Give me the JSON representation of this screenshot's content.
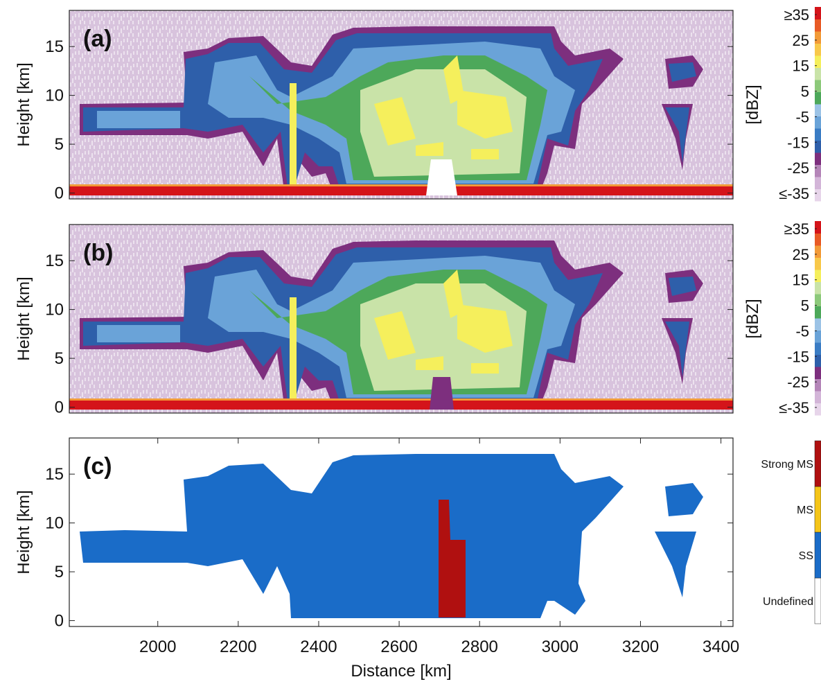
{
  "chart_data": [
    {
      "type": "heatmap",
      "panel_label": "(a)",
      "y_label": "Height [km]",
      "xlim": [
        1780,
        3430
      ],
      "ylim": [
        -0.6,
        18.7
      ],
      "yticks": [
        0,
        5,
        10,
        15
      ],
      "colorbar": {
        "label": "[dBZ]",
        "lim": [
          -38,
          38
        ],
        "ticks": [
          {
            "value": 35,
            "label": "≥35"
          },
          25,
          15,
          5,
          -5,
          -15,
          -25,
          {
            "value": -35,
            "label": "≤-35"
          }
        ],
        "colors": [
          "#e7d5ea",
          "#d3b5d8",
          "#b485b8",
          "#7d2f7e",
          "#2e5faa",
          "#3a7cc4",
          "#6aa3d8",
          "#9cc3e6",
          "#4da85a",
          "#8cc97a",
          "#c9e3a8",
          "#f5ef5c",
          "#f8c84a",
          "#f29a38",
          "#e85a25",
          "#d4141a"
        ]
      }
    },
    {
      "type": "heatmap",
      "panel_label": "(b)",
      "y_label": "Height [km]",
      "xlim": [
        1780,
        3430
      ],
      "ylim": [
        -0.6,
        18.7
      ],
      "yticks": [
        0,
        5,
        10,
        15
      ],
      "colorbar": {
        "label": "[dBZ]",
        "lim": [
          -38,
          38
        ],
        "ticks": [
          {
            "value": 35,
            "label": "≥35"
          },
          25,
          15,
          5,
          -5,
          -15,
          -25,
          {
            "value": -35,
            "label": "≤-35"
          }
        ],
        "colors": [
          "#e7d5ea",
          "#d3b5d8",
          "#b485b8",
          "#7d2f7e",
          "#2e5faa",
          "#3a7cc4",
          "#6aa3d8",
          "#9cc3e6",
          "#4da85a",
          "#8cc97a",
          "#c9e3a8",
          "#f5ef5c",
          "#f8c84a",
          "#f29a38",
          "#e85a25",
          "#d4141a"
        ]
      }
    },
    {
      "type": "heatmap",
      "panel_label": "(c)",
      "y_label": "Height [km]",
      "x_label": "Distance [km]",
      "xlim": [
        1780,
        3430
      ],
      "ylim": [
        -0.6,
        18.7
      ],
      "yticks": [
        0,
        5,
        10,
        15
      ],
      "xticks": [
        2000,
        2200,
        2400,
        2600,
        2800,
        3000,
        3200,
        3400
      ],
      "colorbar": {
        "categories": [
          "Undefined",
          "SS",
          "MS",
          "Strong MS"
        ],
        "colors": [
          "#ffffff",
          "#1a6cc8",
          "#f5c518",
          "#b01010"
        ]
      }
    }
  ]
}
